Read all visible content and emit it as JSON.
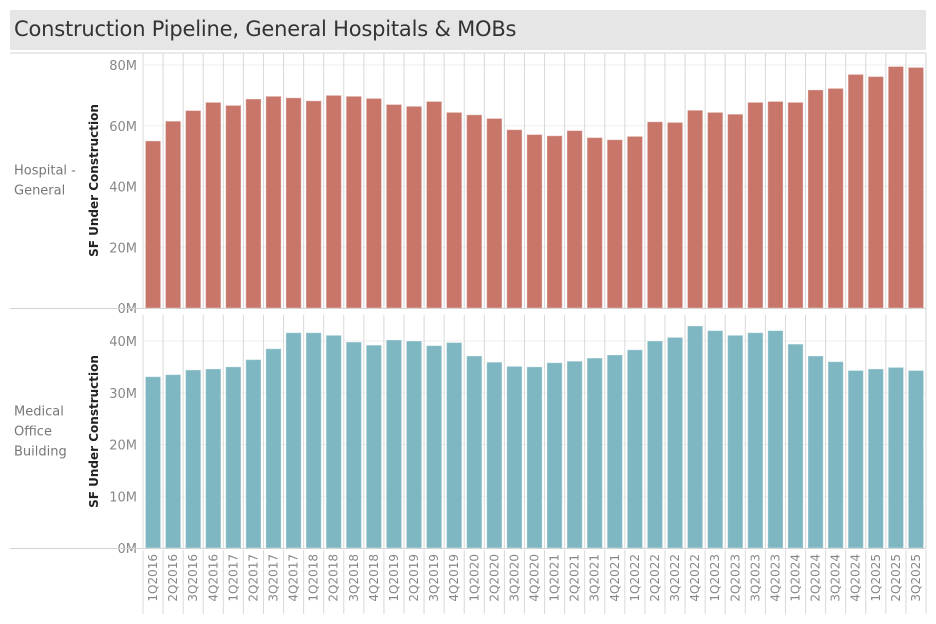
{
  "title": "Construction Pipeline, General Hospitals & MOBs",
  "chart_data": {
    "type": "bar",
    "title": "Construction Pipeline, General Hospitals & MOBs",
    "categories": [
      "1Q2016",
      "2Q2016",
      "3Q2016",
      "4Q2016",
      "1Q2017",
      "2Q2017",
      "3Q2017",
      "4Q2017",
      "1Q2018",
      "2Q2018",
      "3Q2018",
      "4Q2018",
      "1Q2019",
      "2Q2019",
      "3Q2019",
      "4Q2019",
      "1Q2020",
      "2Q2020",
      "3Q2020",
      "4Q2020",
      "1Q2021",
      "2Q2021",
      "3Q2021",
      "4Q2021",
      "1Q2022",
      "2Q2022",
      "3Q2022",
      "4Q2022",
      "1Q2023",
      "2Q2023",
      "3Q2023",
      "4Q2023",
      "1Q2024",
      "2Q2024",
      "3Q2024",
      "4Q2024",
      "1Q2025",
      "2Q2025",
      "3Q2025"
    ],
    "xlabel": "",
    "panels": [
      {
        "row_label": [
          "Hospital -",
          "General"
        ],
        "ylabel": "SF Under Construction",
        "ylim": [
          0,
          80
        ],
        "yticks": [
          0,
          20,
          40,
          60,
          80
        ],
        "ytick_labels": [
          "0M",
          "20M",
          "40M",
          "60M",
          "80M"
        ],
        "unit": "M sq ft",
        "color": "#c8766a",
        "values": [
          55.0,
          61.5,
          65.0,
          67.7,
          66.7,
          68.8,
          69.7,
          69.2,
          68.2,
          70.0,
          69.7,
          69.0,
          67.0,
          66.4,
          68.0,
          64.4,
          63.6,
          62.4,
          58.7,
          57.1,
          56.7,
          58.4,
          56.1,
          55.4,
          56.5,
          61.3,
          61.1,
          65.1,
          64.4,
          63.8,
          67.7,
          68.0,
          67.7,
          71.8,
          72.3,
          76.9,
          76.2,
          79.5,
          79.2
        ]
      },
      {
        "row_label": [
          "Medical",
          "Office",
          "Building"
        ],
        "ylabel": "SF Under Construction",
        "ylim": [
          0,
          40
        ],
        "yticks": [
          0,
          10,
          20,
          30,
          40
        ],
        "ytick_labels": [
          "0M",
          "10M",
          "20M",
          "30M",
          "40M"
        ],
        "unit": "M sq ft",
        "color": "#7eb7c2",
        "values": [
          33.1,
          33.5,
          34.4,
          34.6,
          35.0,
          36.4,
          38.5,
          41.6,
          41.6,
          41.1,
          39.8,
          39.2,
          40.2,
          40.0,
          39.1,
          39.7,
          37.1,
          35.9,
          35.1,
          35.0,
          35.8,
          36.1,
          36.7,
          37.3,
          38.3,
          40.0,
          40.7,
          42.9,
          42.0,
          41.1,
          41.6,
          42.0,
          39.4,
          37.1,
          36.0,
          34.3,
          34.6,
          34.9,
          34.3
        ]
      }
    ],
    "grid": true,
    "legend": "none"
  }
}
